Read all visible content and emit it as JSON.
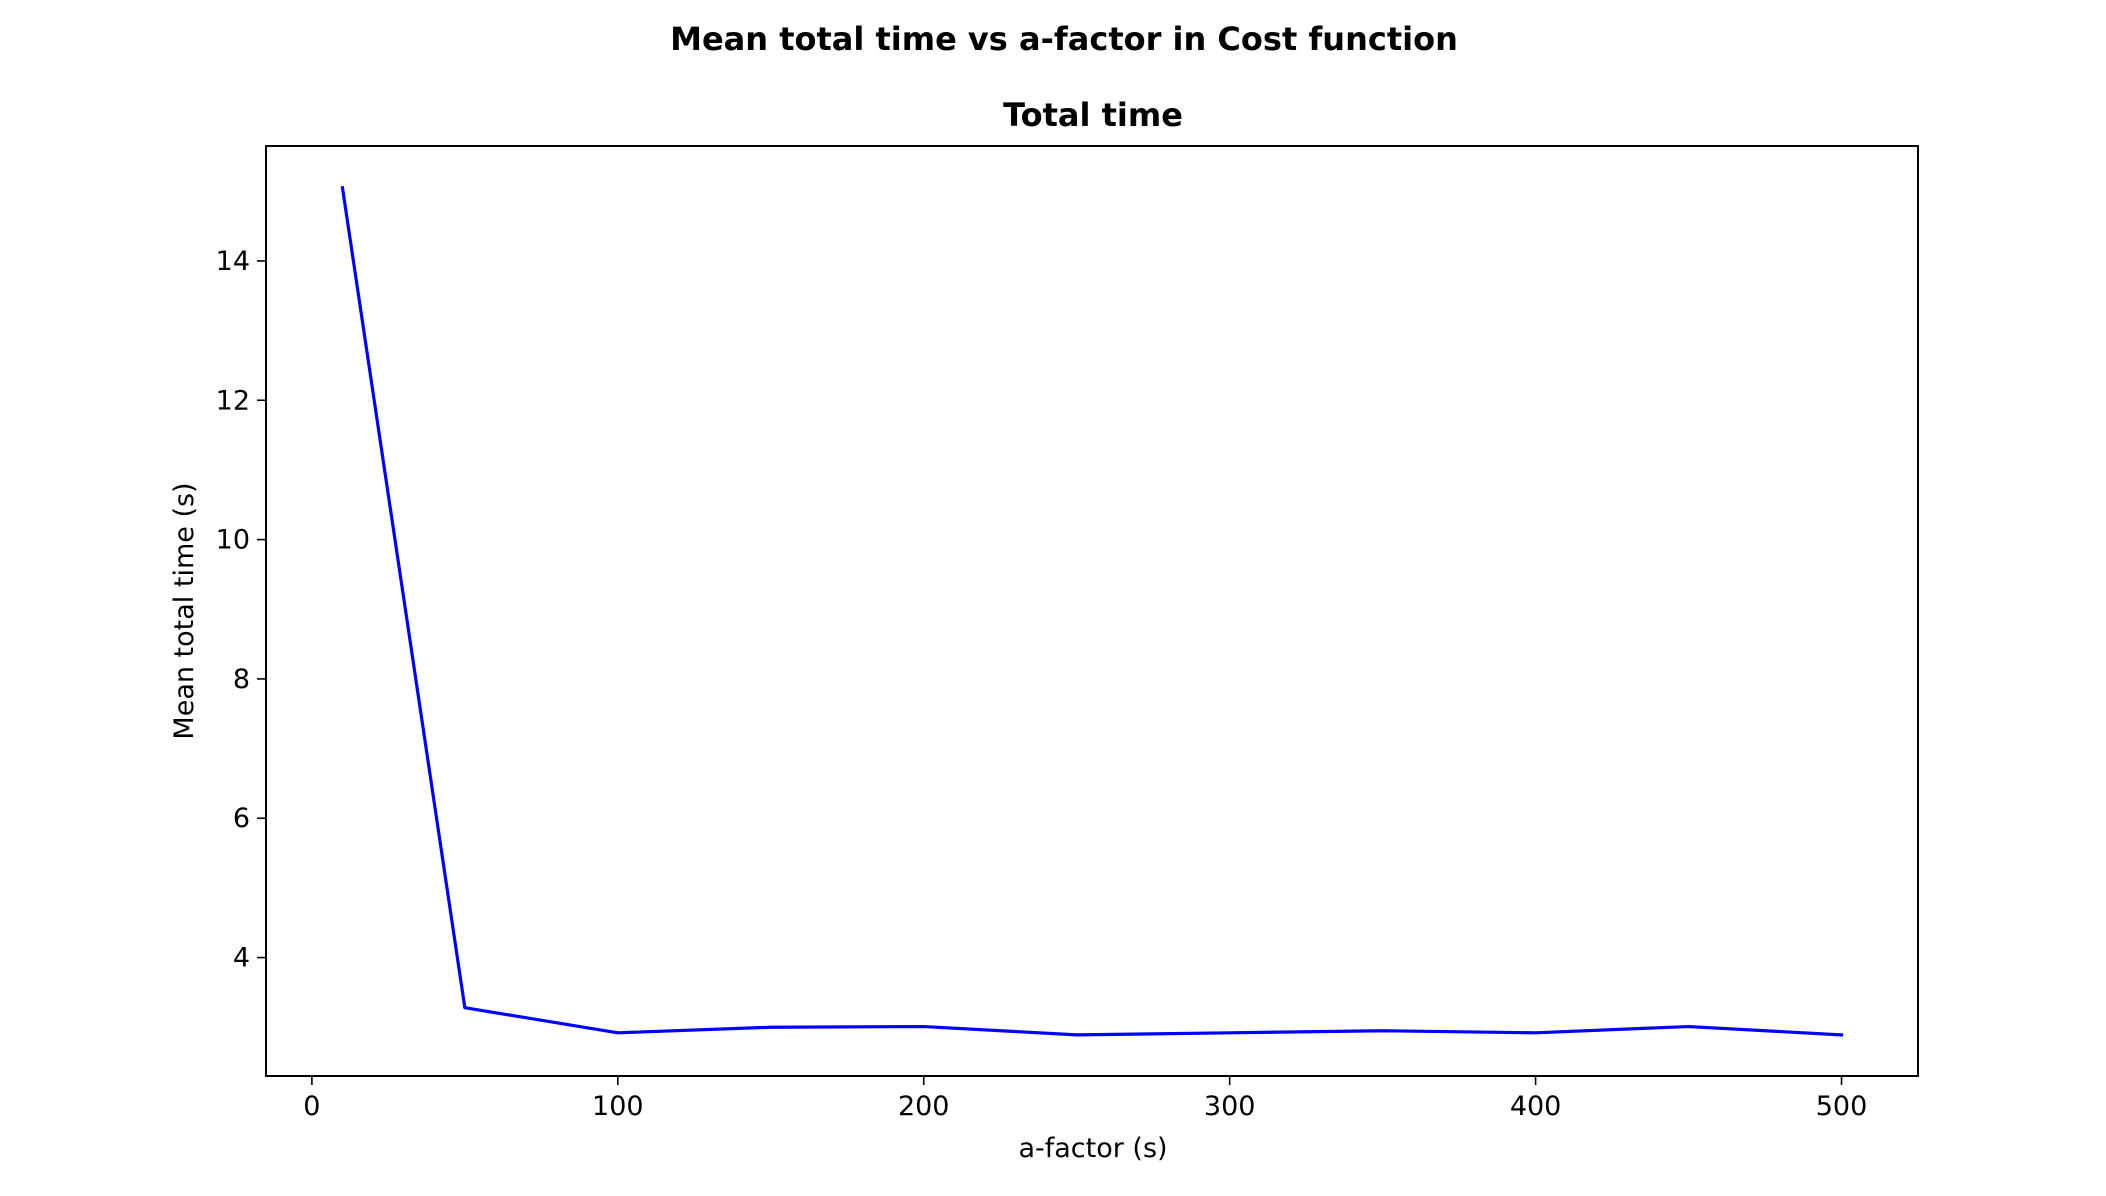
{
  "figure": {
    "suptitle": "Mean total time vs a-factor in Cost function"
  },
  "chart_data": {
    "type": "line",
    "title": "Total time",
    "xlabel": "a-factor (s)",
    "ylabel": "Mean total time (s)",
    "xlim": [
      -15,
      525
    ],
    "ylim": [
      2.3,
      15.65
    ],
    "xticks": [
      0,
      100,
      200,
      300,
      400,
      500
    ],
    "yticks": [
      4,
      6,
      8,
      10,
      12,
      14
    ],
    "grid": false,
    "legend": "none",
    "series": [
      {
        "color": "#0000ff",
        "x": [
          10,
          50,
          100,
          150,
          200,
          250,
          300,
          350,
          400,
          450,
          500
        ],
        "y": [
          15.05,
          3.28,
          2.92,
          3.0,
          3.01,
          2.89,
          2.92,
          2.95,
          2.92,
          3.01,
          2.89
        ]
      }
    ]
  }
}
